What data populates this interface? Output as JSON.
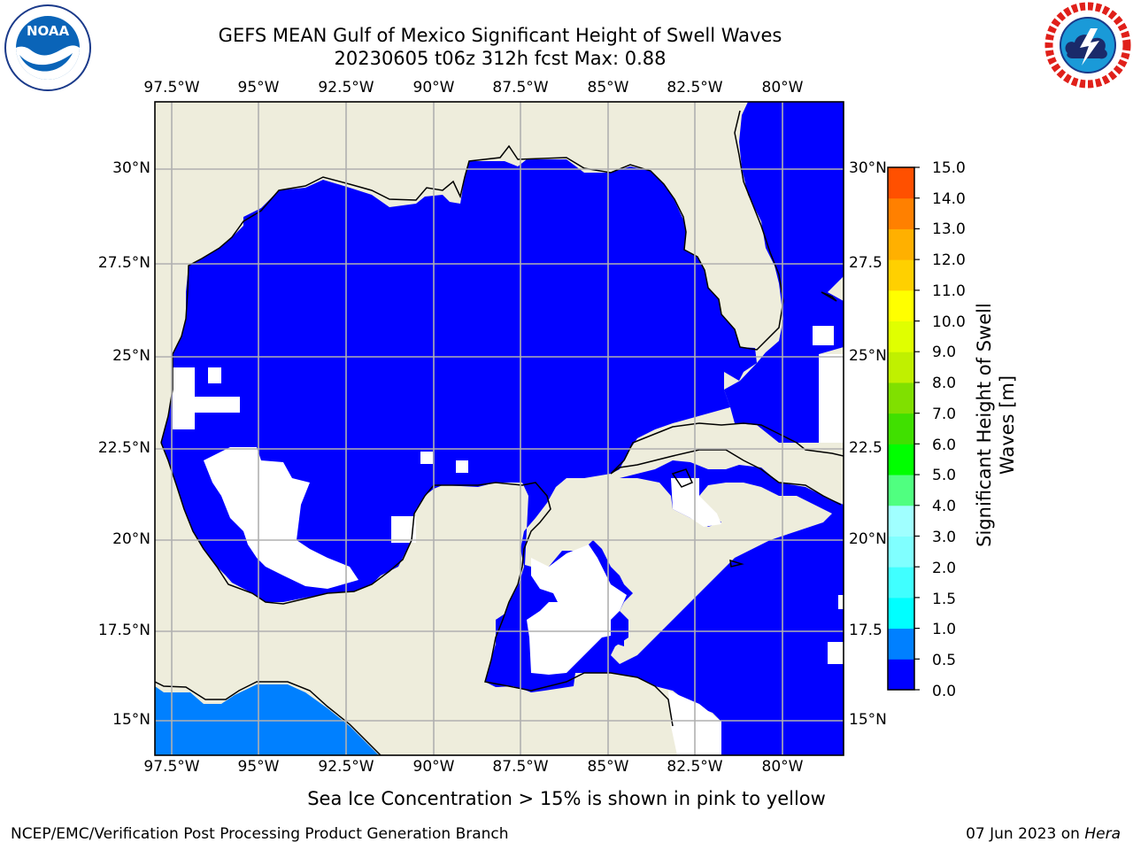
{
  "header": {
    "title_line1": "GEFS MEAN Gulf of Mexico Significant Height of Swell Waves",
    "title_line2": "20230605 t06z 312h fcst   Max: 0.88"
  },
  "logos": {
    "left": {
      "text": "NOAA",
      "ring_text": "NATIONAL OCEANIC AND ATMOSPHERIC ADMINISTRATION · U.S. DEPARTMENT OF COMMERCE"
    },
    "right": {
      "ring_text": "NATIONAL WEATHER SERVICE"
    }
  },
  "map": {
    "lon_labels": [
      "97.5°W",
      "95°W",
      "92.5°W",
      "90°W",
      "87.5°W",
      "85°W",
      "82.5°W",
      "80°W"
    ],
    "lat_labels_left": [
      "30°N",
      "27.5°N",
      "25°N",
      "22.5°N",
      "20°N",
      "17.5°N",
      "15°N"
    ],
    "lat_labels_right": [
      "30°N",
      "27.5",
      "25°N",
      "22.5",
      "20°N",
      "17.5",
      "15°N"
    ],
    "colors": {
      "land": "#eeeddc",
      "ocean_low": "#0000ff",
      "ocean_mid": "#0080ff",
      "grid": "#b0b0b0",
      "coast": "#000000"
    }
  },
  "colorbar": {
    "label": "Significant Height of Swell Waves [m]",
    "tick_labels": [
      "15.0",
      "14.0",
      "13.0",
      "12.0",
      "11.0",
      "10.0",
      "9.0",
      "8.0",
      "7.0",
      "6.0",
      "5.0",
      "4.0",
      "3.0",
      "2.0",
      "1.5",
      "1.0",
      "0.5",
      "0.0"
    ],
    "colors_bottom_to_top": [
      "#0000ff",
      "#0080ff",
      "#00ffff",
      "#40ffff",
      "#80ffff",
      "#a0ffff",
      "#50ff80",
      "#00ff00",
      "#40e000",
      "#80e000",
      "#c0f000",
      "#e0ff00",
      "#ffff00",
      "#ffd000",
      "#ffb000",
      "#ff8000",
      "#ff5000",
      "#ff2000",
      "#ff0000"
    ]
  },
  "caption": "Sea Ice Concentration > 15% is shown in pink to yellow",
  "footer": {
    "left": "NCEP/EMC/Verification Post Processing Product Generation Branch",
    "date": "07 Jun 2023 on ",
    "machine": "Hera"
  }
}
